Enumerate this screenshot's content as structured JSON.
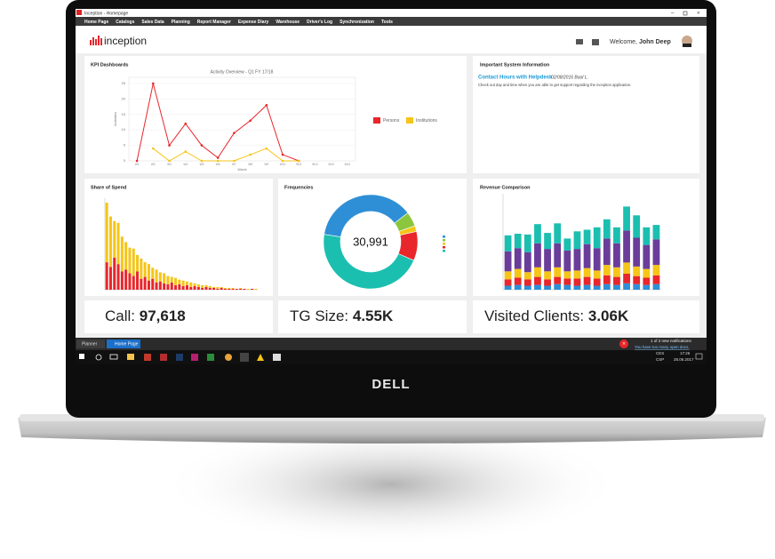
{
  "window": {
    "title": "Inception - Homepage"
  },
  "menu": [
    "Home Page",
    "Catalogs",
    "Sales Data",
    "Planning",
    "Report Manager",
    "Expense Diary",
    "Warehouse",
    "Driver's Log",
    "Synchronization",
    "Tools"
  ],
  "header": {
    "logo": "inception",
    "welcome": "Welcome,",
    "user": "John Deep"
  },
  "kpi_panel": {
    "title": "KPI Dashboards"
  },
  "info_panel": {
    "title": "Important System Information",
    "link": "Contact Hours with Helpdesk",
    "meta": "02/08/2016 Bool L.",
    "text": "Check out day and time when you are able to get support regarding the inception application."
  },
  "chart_data": [
    {
      "type": "line",
      "title": "Activity Overview - Q1 FY 17/18",
      "y_label": "Activities",
      "x_label": "Week",
      "categories": [
        "W1",
        "W2",
        "W3",
        "W4",
        "W5",
        "W6",
        "W7",
        "W8",
        "W9",
        "W10",
        "W11",
        "W12",
        "W13",
        "W14"
      ],
      "series": [
        {
          "name": "Persons",
          "color": "#e8262b",
          "values": [
            0,
            25,
            5,
            12,
            5,
            1,
            9,
            13,
            18,
            2,
            0,
            null,
            null,
            null
          ]
        },
        {
          "name": "Institutions",
          "color": "#f5c518",
          "values": [
            null,
            4,
            0,
            3,
            0,
            0,
            0,
            2,
            4,
            0,
            0,
            null,
            null,
            null
          ]
        }
      ],
      "ylim": [
        0,
        27
      ],
      "yticks": [
        0,
        5,
        10,
        15,
        20,
        25
      ],
      "grid": true
    },
    {
      "type": "stacked-bar",
      "title": "Share of Spend",
      "series": [
        {
          "color": "#e8262b",
          "values": [
            30,
            25,
            35,
            28,
            20,
            22,
            18,
            15,
            20,
            12,
            14,
            10,
            12,
            8,
            9,
            7,
            6,
            8,
            5,
            6,
            4,
            5,
            3,
            4,
            3,
            2,
            3,
            2,
            2,
            1,
            2,
            1,
            1,
            1,
            1,
            1,
            1,
            0,
            1,
            0
          ]
        },
        {
          "color": "#f5c518",
          "values": [
            65,
            55,
            40,
            45,
            38,
            30,
            28,
            30,
            18,
            22,
            16,
            18,
            12,
            14,
            10,
            11,
            9,
            6,
            8,
            5,
            6,
            4,
            5,
            3,
            3,
            3,
            2,
            2,
            1,
            2,
            1,
            1,
            1,
            1,
            0,
            1,
            0,
            1,
            0,
            1
          ]
        }
      ],
      "ylim": [
        0,
        100
      ]
    },
    {
      "type": "donut",
      "title": "Frequencies",
      "center_label": "30,991",
      "values": [
        37,
        5,
        2,
        10,
        46
      ],
      "colors": [
        "#2e8fd6",
        "#8cc63e",
        "#f5c518",
        "#e8262b",
        "#1bbfb0"
      ]
    },
    {
      "type": "stacked-bar",
      "title": "Revenue Comparison",
      "series": [
        {
          "color": "#2e8fd6",
          "values": [
            5,
            6,
            5,
            6,
            5,
            7,
            6,
            5,
            6,
            5,
            7,
            6,
            8,
            7,
            6,
            7
          ]
        },
        {
          "color": "#e8262b",
          "values": [
            8,
            9,
            8,
            10,
            8,
            9,
            8,
            9,
            10,
            9,
            11,
            10,
            12,
            10,
            9,
            11
          ]
        },
        {
          "color": "#f5c518",
          "values": [
            10,
            11,
            9,
            12,
            10,
            12,
            9,
            10,
            11,
            10,
            13,
            12,
            14,
            12,
            11,
            13
          ]
        },
        {
          "color": "#6a3d9a",
          "values": [
            25,
            26,
            25,
            30,
            28,
            30,
            26,
            27,
            30,
            28,
            33,
            30,
            40,
            36,
            30,
            32
          ]
        },
        {
          "color": "#1bbfb0",
          "values": [
            20,
            18,
            22,
            24,
            20,
            25,
            15,
            22,
            18,
            26,
            24,
            20,
            30,
            28,
            22,
            18
          ]
        }
      ],
      "ylim": [
        0,
        120
      ]
    }
  ],
  "tiles": [
    {
      "label": "Call:",
      "value": "97,618"
    },
    {
      "label": "TG Size:",
      "value": "4.55K"
    },
    {
      "label": "Visited Clients:",
      "value": "3.06K"
    }
  ],
  "app_bar": {
    "tabs": [
      "Planner",
      "Home Page"
    ],
    "notification": "1 of 2 new notifications",
    "notification_link": "You have too many open docs."
  },
  "taskbar": {
    "lang": "CES",
    "layout": "CSP",
    "clock": "17:26",
    "date": "28.06.2017"
  },
  "brand": "DELL"
}
